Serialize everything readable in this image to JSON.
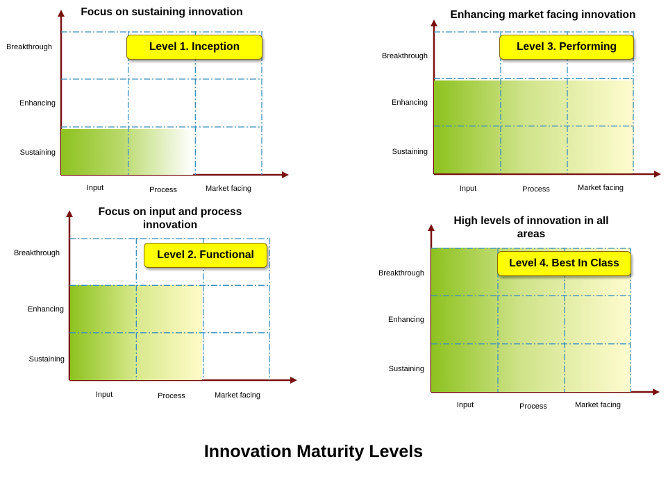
{
  "footer_title": "Innovation Maturity Levels",
  "colors": {
    "axis": "#7a1010",
    "grid": "#3a8fbf",
    "fill_start": "#8dc21f",
    "fill_end_pale": "#fffdd8",
    "fill_end_white": "#ffffff",
    "level_box": "#ffff00"
  },
  "panels": [
    {
      "id": "p1",
      "title": "Focus on sustaining innovation",
      "level": "Level 1. Inception",
      "y_labels": [
        "Breakthrough",
        "Enhancing",
        "Sustaining"
      ],
      "x_labels": [
        "Input",
        "Process",
        "Market facing"
      ]
    },
    {
      "id": "p2",
      "title": "Focus on input and process innovation",
      "level": "Level 2. Functional",
      "y_labels": [
        "Breakthrough",
        "Enhancing",
        "Sustaining"
      ],
      "x_labels": [
        "Input",
        "Process",
        "Market facing"
      ]
    },
    {
      "id": "p3",
      "title": "Enhancing market facing innovation",
      "level": "Level 3. Performing",
      "y_labels": [
        "Breakthrough",
        "Enhancing",
        "Sustaining"
      ],
      "x_labels": [
        "Input",
        "Process",
        "Market facing"
      ]
    },
    {
      "id": "p4",
      "title": "High levels of innovation in all areas",
      "level": "Level 4. Best In Class",
      "y_labels": [
        "Breakthrough",
        "Enhancing",
        "Sustaining"
      ],
      "x_labels": [
        "Input",
        "Process",
        "Market facing"
      ]
    }
  ]
}
